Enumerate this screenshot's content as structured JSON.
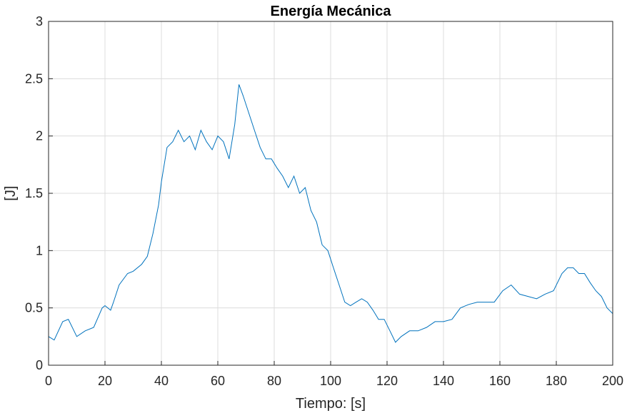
{
  "chart_data": {
    "type": "line",
    "title": "Energía Mecánica",
    "xlabel": "Tiempo: [s]",
    "ylabel": "[J]",
    "xlim": [
      0,
      200
    ],
    "ylim": [
      0,
      3
    ],
    "xticks": [
      0,
      20,
      40,
      60,
      80,
      100,
      120,
      140,
      160,
      180,
      200
    ],
    "yticks": [
      0,
      0.5,
      1,
      1.5,
      2,
      2.5,
      3
    ],
    "xtick_labels": [
      "0",
      "20",
      "40",
      "60",
      "80",
      "100",
      "120",
      "140",
      "160",
      "180",
      "200"
    ],
    "ytick_labels": [
      "0",
      "0.5",
      "1",
      "1.5",
      "2",
      "2.5",
      "3"
    ],
    "grid": true,
    "legend": "none",
    "series": [
      {
        "color": "#0072BD",
        "x": [
          0,
          2,
          5,
          7,
          10,
          13,
          16,
          19,
          20,
          22,
          23,
          25,
          28,
          30,
          33,
          35,
          37,
          39,
          40,
          42,
          44,
          46,
          48,
          50,
          52,
          54,
          56,
          58,
          60,
          62,
          64,
          66,
          67.5,
          69,
          71,
          73,
          75,
          77,
          79,
          81,
          83,
          85,
          87,
          89,
          91,
          93,
          95,
          97,
          99,
          101,
          103,
          105,
          107,
          109,
          111,
          113,
          115,
          117,
          119,
          121,
          123,
          125,
          128,
          131,
          134,
          137,
          140,
          143,
          146,
          149,
          152,
          155,
          158,
          161,
          164,
          167,
          170,
          173,
          176,
          179,
          182,
          184,
          186,
          188,
          190,
          192,
          194,
          196,
          198,
          200
        ],
        "y": [
          0.25,
          0.22,
          0.38,
          0.4,
          0.25,
          0.3,
          0.33,
          0.5,
          0.52,
          0.48,
          0.55,
          0.7,
          0.8,
          0.82,
          0.88,
          0.95,
          1.15,
          1.4,
          1.6,
          1.9,
          1.95,
          2.05,
          1.95,
          2.0,
          1.88,
          2.05,
          1.95,
          1.88,
          2.0,
          1.95,
          1.8,
          2.1,
          2.45,
          2.35,
          2.2,
          2.05,
          1.9,
          1.8,
          1.8,
          1.72,
          1.65,
          1.55,
          1.65,
          1.5,
          1.55,
          1.35,
          1.25,
          1.05,
          1.0,
          0.85,
          0.7,
          0.55,
          0.52,
          0.55,
          0.58,
          0.55,
          0.48,
          0.4,
          0.4,
          0.3,
          0.2,
          0.25,
          0.3,
          0.3,
          0.33,
          0.38,
          0.38,
          0.4,
          0.5,
          0.53,
          0.55,
          0.55,
          0.55,
          0.65,
          0.7,
          0.62,
          0.6,
          0.58,
          0.62,
          0.65,
          0.8,
          0.85,
          0.85,
          0.8,
          0.8,
          0.72,
          0.65,
          0.6,
          0.5,
          0.45
        ]
      }
    ]
  }
}
